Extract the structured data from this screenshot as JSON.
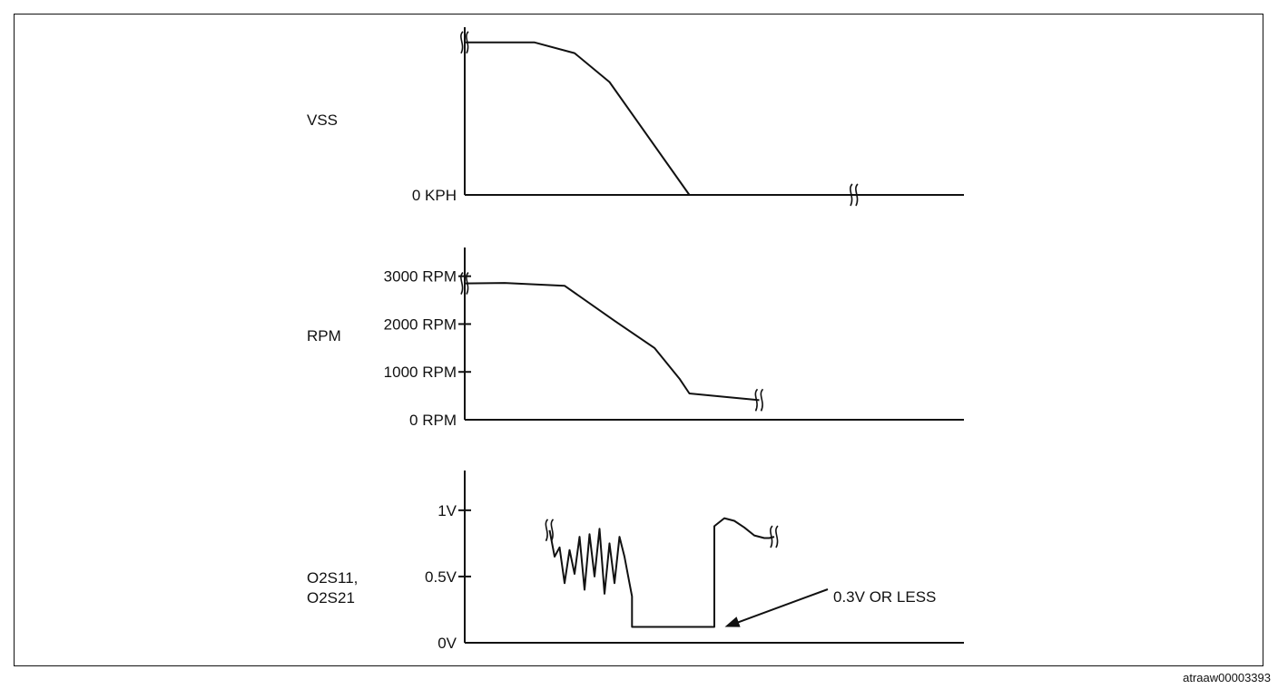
{
  "chart_data": [
    {
      "type": "line",
      "ylabel": "VSS",
      "tick_labels": [
        "0 KPH"
      ],
      "series": [
        {
          "x": [
            0,
            14,
            22,
            29,
            45,
            70
          ],
          "y": [
            1.0,
            1.0,
            0.93,
            0.74,
            0,
            0
          ]
        }
      ],
      "x_range": [
        0,
        100
      ],
      "ylim": [
        0,
        1.1
      ],
      "breaks": [
        {
          "x": 0,
          "y": 1.0
        },
        {
          "x": 78,
          "y": 0
        }
      ]
    },
    {
      "type": "line",
      "ylabel": "RPM",
      "tick_labels": [
        "3000 RPM",
        "2000 RPM",
        "1000 RPM",
        "0 RPM"
      ],
      "tick_values": [
        3000,
        2000,
        1000,
        0
      ],
      "series": [
        {
          "x": [
            0,
            8,
            20,
            30,
            38,
            43,
            45,
            53,
            59
          ],
          "y": [
            2850,
            2860,
            2800,
            2070,
            1500,
            860,
            550,
            470,
            410
          ]
        }
      ],
      "x_range": [
        0,
        100
      ],
      "ylim": [
        0,
        3600
      ],
      "breaks": [
        {
          "x": 0,
          "y": 2850
        },
        {
          "x": 59,
          "y": 410
        }
      ]
    },
    {
      "type": "line",
      "ylabel_lines": [
        "O2S11,",
        "O2S21"
      ],
      "tick_labels": [
        "1V",
        "0.5V",
        "0V"
      ],
      "tick_values": [
        1,
        0.5,
        0
      ],
      "series": [
        {
          "x": [
            17,
            18,
            19,
            20,
            21,
            22,
            23,
            24,
            25,
            26,
            27,
            28,
            29,
            30,
            31,
            32,
            33,
            33.5,
            33.5,
            38,
            44,
            49.5,
            50,
            50,
            52,
            54,
            56,
            58,
            60,
            61,
            62
          ],
          "y": [
            0.85,
            0.65,
            0.72,
            0.45,
            0.7,
            0.52,
            0.8,
            0.4,
            0.82,
            0.5,
            0.86,
            0.37,
            0.75,
            0.45,
            0.8,
            0.65,
            0.45,
            0.35,
            0.12,
            0.12,
            0.12,
            0.12,
            0.12,
            0.88,
            0.94,
            0.92,
            0.87,
            0.81,
            0.79,
            0.79,
            0.8
          ]
        }
      ],
      "x_range": [
        0,
        100
      ],
      "ylim": [
        0,
        1.3
      ],
      "breaks": [
        {
          "x": 17,
          "y": 0.85
        },
        {
          "x": 62,
          "y": 0.8
        }
      ],
      "annotations": [
        {
          "text": "0.3V OR LESS",
          "x": 51,
          "y": 0.12
        }
      ]
    }
  ],
  "footer_id": "atraaw00003393"
}
